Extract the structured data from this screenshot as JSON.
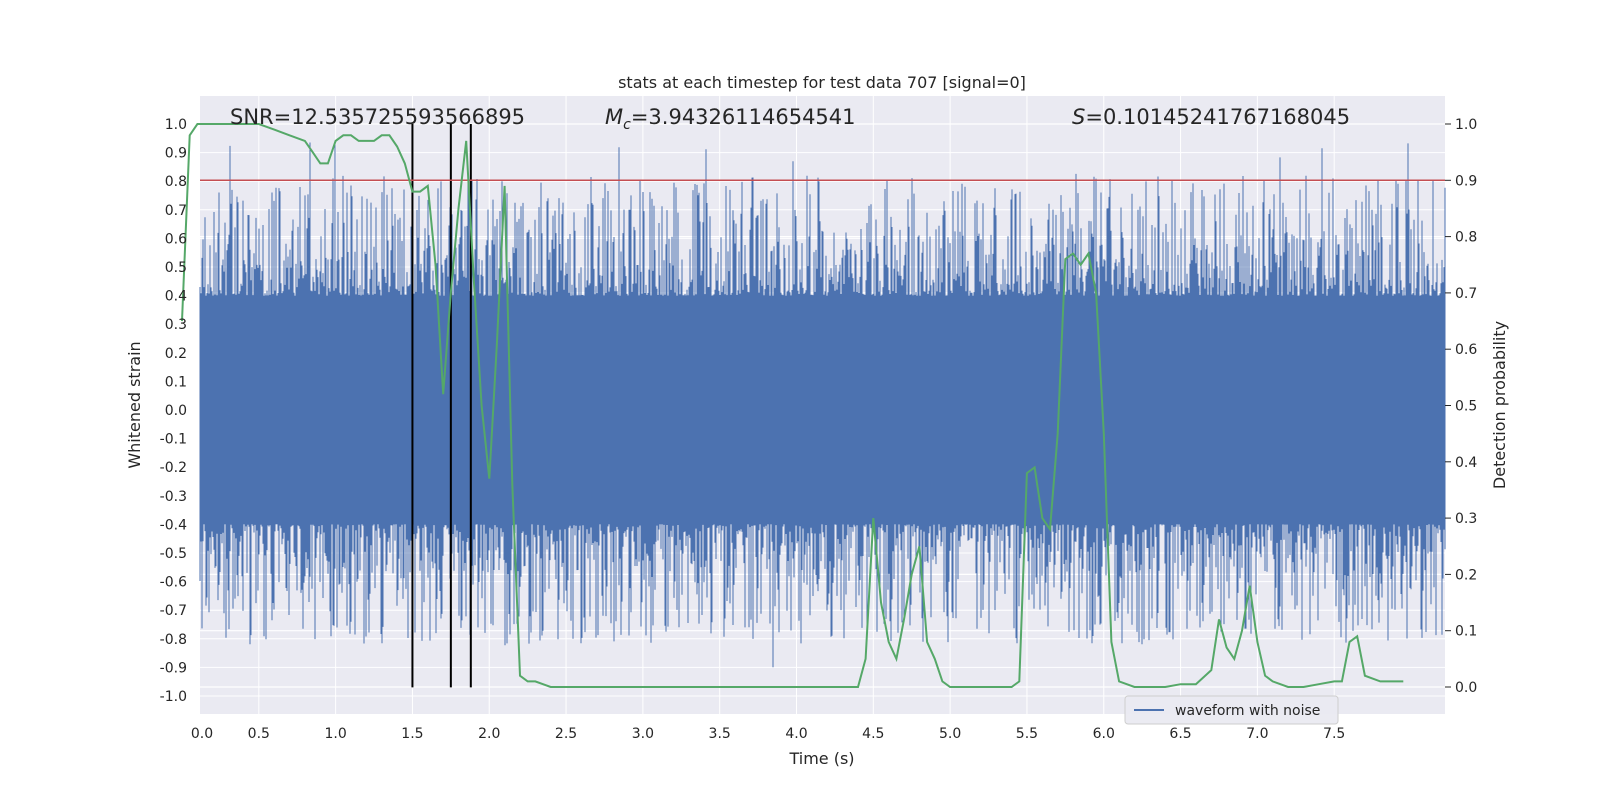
{
  "chart_data": {
    "type": "line",
    "title": "stats at each timestep for test data 707 [signal=0]",
    "xlabel": "Time (s)",
    "ylabel": "Whitened strain",
    "ylabel_right": "Detection probability",
    "xlim": [
      0.0,
      8.0
    ],
    "ylim": [
      -1.06,
      1.1
    ],
    "ylim_right": [
      -0.05,
      1.04
    ],
    "x_ticks": [
      0.0,
      0.5,
      1.0,
      1.5,
      2.0,
      2.5,
      3.0,
      3.5,
      4.0,
      4.5,
      5.0,
      5.5,
      6.0,
      6.5,
      7.0,
      7.5
    ],
    "x_tick_labels": [
      "0.0",
      "0.5",
      "1.0",
      "1.5",
      "2.0",
      "2.5",
      "3.0",
      "3.5",
      "4.0",
      "4.5",
      "5.0",
      "5.5",
      "6.0",
      "6.5",
      "7.0",
      "7.5"
    ],
    "y_ticks": [
      -1.0,
      -0.9,
      -0.8,
      -0.7,
      -0.6,
      -0.5,
      -0.4,
      -0.3,
      -0.2,
      -0.1,
      0.0,
      0.1,
      0.2,
      0.3,
      0.4,
      0.5,
      0.6,
      0.7,
      0.8,
      0.9,
      1.0
    ],
    "y_tick_labels": [
      "-1.0",
      "-0.9",
      "-0.8",
      "-0.7",
      "-0.6",
      "-0.5",
      "-0.4",
      "-0.3",
      "-0.2",
      "-0.1",
      "0.0",
      "0.1",
      "0.2",
      "0.3",
      "0.4",
      "0.5",
      "0.6",
      "0.7",
      "0.8",
      "0.9",
      "1.0"
    ],
    "y_right_ticks": [
      0.0,
      0.1,
      0.2,
      0.3,
      0.4,
      0.5,
      0.6,
      0.7,
      0.8,
      0.9,
      1.0
    ],
    "y_right_tick_labels": [
      "0.0",
      "0.1",
      "0.2",
      "0.3",
      "0.4",
      "0.5",
      "0.6",
      "0.7",
      "0.8",
      "0.9",
      "1.0"
    ],
    "grid": true,
    "legend_position": "lower-right",
    "annotations": {
      "snr": "SNR=12.535725593566895",
      "mc": "=3.94326114654541",
      "mc_symbol": "M",
      "mc_sub": "c",
      "s": "=0.10145241767168045",
      "s_symbol": "S"
    },
    "threshold": {
      "value": 0.9,
      "axis": "right",
      "color": "#c44e52"
    },
    "vertical_lines": [
      1.5,
      1.75,
      1.88
    ],
    "series": [
      {
        "name": "waveform with noise",
        "color": "#4c72b0",
        "axis": "left",
        "envelope_core": 0.38,
        "max_abs": 1.0
      },
      {
        "color": "#55a868",
        "axis": "right",
        "x": [
          0.0,
          0.05,
          0.1,
          0.2,
          0.3,
          0.4,
          0.5,
          0.6,
          0.7,
          0.8,
          0.85,
          0.9,
          0.95,
          1.0,
          1.05,
          1.1,
          1.15,
          1.2,
          1.25,
          1.3,
          1.35,
          1.4,
          1.45,
          1.5,
          1.55,
          1.6,
          1.65,
          1.7,
          1.75,
          1.8,
          1.85,
          1.9,
          1.95,
          2.0,
          2.05,
          2.1,
          2.15,
          2.2,
          2.25,
          2.3,
          2.35,
          2.4,
          2.5,
          2.6,
          2.7,
          2.8,
          2.9,
          3.0,
          3.2,
          3.4,
          3.6,
          3.8,
          4.0,
          4.2,
          4.4,
          4.45,
          4.5,
          4.55,
          4.6,
          4.65,
          4.7,
          4.75,
          4.8,
          4.85,
          4.9,
          4.95,
          5.0,
          5.1,
          5.2,
          5.3,
          5.4,
          5.45,
          5.5,
          5.55,
          5.6,
          5.65,
          5.7,
          5.75,
          5.8,
          5.85,
          5.9,
          5.95,
          6.0,
          6.05,
          6.1,
          6.2,
          6.3,
          6.4,
          6.5,
          6.6,
          6.7,
          6.75,
          6.8,
          6.85,
          6.9,
          6.95,
          7.0,
          7.05,
          7.1,
          7.15,
          7.2,
          7.3,
          7.4,
          7.5,
          7.55,
          7.6,
          7.65,
          7.7,
          7.8,
          7.9,
          7.95
        ],
        "values": [
          0.65,
          0.98,
          1.0,
          1.0,
          1.0,
          1.0,
          1.0,
          0.99,
          0.98,
          0.97,
          0.95,
          0.93,
          0.93,
          0.97,
          0.98,
          0.98,
          0.97,
          0.97,
          0.97,
          0.98,
          0.98,
          0.96,
          0.93,
          0.88,
          0.88,
          0.89,
          0.75,
          0.52,
          0.7,
          0.85,
          0.97,
          0.72,
          0.5,
          0.37,
          0.61,
          0.89,
          0.36,
          0.02,
          0.01,
          0.01,
          0.005,
          0.0,
          0.0,
          0.0,
          0.0,
          0.0,
          0.0,
          0.0,
          0.0,
          0.0,
          0.0,
          0.0,
          0.0,
          0.0,
          0.0,
          0.05,
          0.3,
          0.15,
          0.08,
          0.05,
          0.12,
          0.2,
          0.25,
          0.08,
          0.05,
          0.01,
          0.0,
          0.0,
          0.0,
          0.0,
          0.0,
          0.01,
          0.38,
          0.39,
          0.3,
          0.28,
          0.45,
          0.76,
          0.77,
          0.75,
          0.77,
          0.7,
          0.45,
          0.08,
          0.01,
          0.0,
          0.0,
          0.0,
          0.005,
          0.005,
          0.03,
          0.12,
          0.07,
          0.05,
          0.1,
          0.18,
          0.08,
          0.02,
          0.01,
          0.005,
          0.0,
          0.0,
          0.005,
          0.01,
          0.01,
          0.08,
          0.09,
          0.02,
          0.01,
          0.01,
          0.01
        ]
      }
    ]
  }
}
